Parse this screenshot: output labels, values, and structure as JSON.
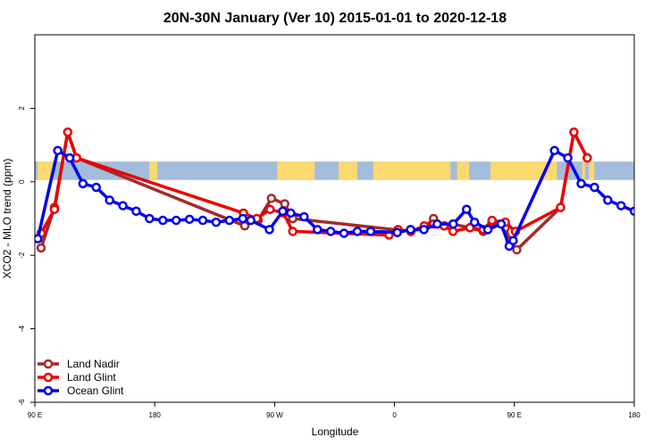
{
  "chart_data": {
    "type": "line",
    "title": "20N-30N January (Ver 10)   2015-01-01 to 2020-12-18",
    "xlabel": "Longitude",
    "ylabel": "XCO2 - MLO trend (ppm)",
    "x_range": [
      90,
      540
    ],
    "ylim": [
      -6,
      4
    ],
    "x_ticks": [
      {
        "value": 90,
        "label": "90 E"
      },
      {
        "value": 180,
        "label": "180"
      },
      {
        "value": 270,
        "label": "90 W"
      },
      {
        "value": 360,
        "label": "0"
      },
      {
        "value": 450,
        "label": "90 E"
      },
      {
        "value": 540,
        "label": "180"
      }
    ],
    "y_ticks": [
      {
        "value": 2,
        "label": "2"
      },
      {
        "value": 0,
        "label": "0"
      },
      {
        "value": -2,
        "label": "-2"
      },
      {
        "value": -4,
        "label": "-4"
      },
      {
        "value": -6,
        "label": "-6"
      }
    ],
    "map_band": {
      "y_top": 0.55,
      "y_bottom": 0.05,
      "ocean_color": "#a4bcdb",
      "land_color": "#fcd96e"
    },
    "legend_position": "bottom-left",
    "series": [
      {
        "name": "Land Nadir",
        "color": "#a52a2a",
        "x": [
          94.7,
          104.7,
          114.7,
          121.3,
          247.6,
          257.6,
          267.6,
          277.6,
          283.6,
          372.3,
          382.3,
          389.3,
          397.3,
          403.9,
          416.6,
          426.6,
          433.2,
          443.2,
          446.8,
          451.8,
          484.7,
          494.7,
          504.7
        ],
        "y": [
          -1.8,
          -0.7,
          1.35,
          0.65,
          -1.2,
          -1.05,
          -0.45,
          -0.6,
          -1.0,
          -1.35,
          -1.25,
          -1.0,
          -1.2,
          -1.15,
          -1.25,
          -1.35,
          -1.1,
          -1.25,
          -1.6,
          -1.85,
          -0.7,
          1.35,
          0.65
        ]
      },
      {
        "name": "Land Glint",
        "color": "#ee0000",
        "x": [
          94.7,
          104.7,
          114.7,
          121.3,
          246.6,
          256.6,
          266.6,
          276.6,
          283.6,
          355.9,
          362.6,
          372.3,
          382.3,
          389.3,
          397.3,
          403.9,
          416.6,
          426.6,
          433.2,
          443.2,
          450.8,
          484.7,
          494.7,
          504.7
        ],
        "y": [
          -1.4,
          -0.75,
          1.35,
          0.65,
          -0.85,
          -1.0,
          -0.75,
          -0.85,
          -1.35,
          -1.45,
          -1.3,
          -1.35,
          -1.2,
          -1.15,
          -1.2,
          -1.35,
          -1.25,
          -1.3,
          -1.05,
          -1.1,
          -1.35,
          -0.7,
          1.35,
          0.65
        ]
      },
      {
        "name": "Ocean Glint",
        "color": "#0000ee",
        "x": [
          92.2,
          107.2,
          116.2,
          126.1,
          136.1,
          146.1,
          156.1,
          166.1,
          176.1,
          186.1,
          196.1,
          206.1,
          216.1,
          226.1,
          236.1,
          246.1,
          252.1,
          266.1,
          276.1,
          282.1,
          292.1,
          302.1,
          312.1,
          322.1,
          332.1,
          342.1,
          362.1,
          372.1,
          382.1,
          392.1,
          404.1,
          414.1,
          420.1,
          430.1,
          440.1,
          446.1,
          449.1,
          480.1,
          490.1,
          500.1,
          510.1,
          520.1,
          530.1,
          540.1,
          550.1
        ],
        "y": [
          -1.55,
          0.85,
          0.65,
          -0.05,
          -0.15,
          -0.5,
          -0.65,
          -0.8,
          -1.0,
          -1.05,
          -1.05,
          -1.02,
          -1.05,
          -1.1,
          -1.05,
          -1.0,
          -1.05,
          -1.3,
          -0.8,
          -0.85,
          -0.95,
          -1.3,
          -1.35,
          -1.4,
          -1.35,
          -1.35,
          -1.38,
          -1.3,
          -1.3,
          -1.15,
          -1.15,
          -0.75,
          -1.1,
          -1.3,
          -1.15,
          -1.75,
          -1.6,
          0.85,
          0.65,
          -0.05,
          -0.15,
          -0.5,
          -0.65,
          -0.8,
          -1.0
        ]
      }
    ]
  }
}
